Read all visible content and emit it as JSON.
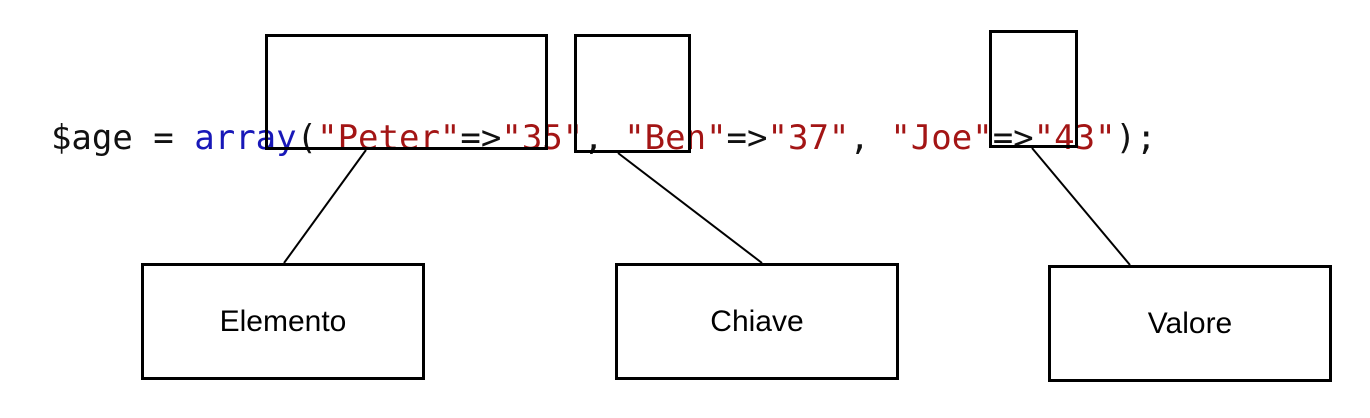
{
  "code": {
    "tokens": [
      {
        "text": "$age = ",
        "kind": "plain"
      },
      {
        "text": "array",
        "kind": "keyword"
      },
      {
        "text": "(",
        "kind": "plain"
      },
      {
        "text": "\"Peter\"",
        "kind": "string"
      },
      {
        "text": "=>",
        "kind": "plain"
      },
      {
        "text": "\"35\"",
        "kind": "string"
      },
      {
        "text": ", ",
        "kind": "plain"
      },
      {
        "text": "\"Ben\"",
        "kind": "string"
      },
      {
        "text": "=>",
        "kind": "plain"
      },
      {
        "text": "\"37\"",
        "kind": "string"
      },
      {
        "text": ", ",
        "kind": "plain"
      },
      {
        "text": "\"Joe\"",
        "kind": "string"
      },
      {
        "text": "=>",
        "kind": "plain"
      },
      {
        "text": "\"43\"",
        "kind": "string"
      },
      {
        "text": ");",
        "kind": "plain"
      }
    ]
  },
  "labels": {
    "element": "Elemento",
    "key": "Chiave",
    "value": "Valore"
  },
  "colors": {
    "string": "#a31515",
    "keyword": "#1818b8",
    "plain": "#111111",
    "border": "#000000"
  }
}
